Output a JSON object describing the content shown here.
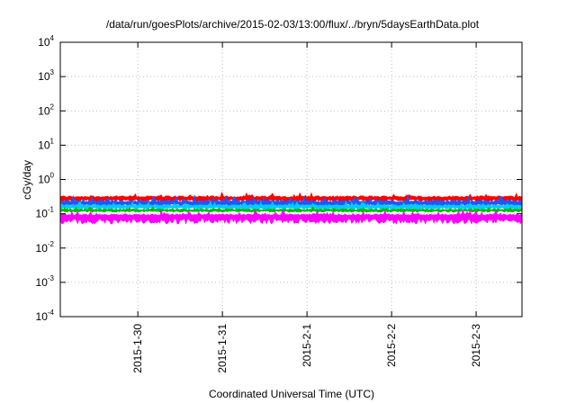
{
  "chart_data": {
    "type": "area",
    "title": "/data/run/goesPlots/archive/2015-02-03/13:00/flux/../bryn/5daysEarthData.plot",
    "xlabel": "Coordinated Universal Time (UTC)",
    "ylabel": "cGy/day",
    "yscale": "log",
    "ylim": [
      0.0001,
      10000
    ],
    "y_ticks": [
      {
        "base": "10",
        "exp": "-4",
        "value": 0.0001
      },
      {
        "base": "10",
        "exp": "-3",
        "value": 0.001
      },
      {
        "base": "10",
        "exp": "-2",
        "value": 0.01
      },
      {
        "base": "10",
        "exp": "-1",
        "value": 0.1
      },
      {
        "base": "10",
        "exp": "0",
        "value": 1
      },
      {
        "base": "10",
        "exp": "1",
        "value": 10
      },
      {
        "base": "10",
        "exp": "2",
        "value": 100
      },
      {
        "base": "10",
        "exp": "3",
        "value": 1000
      },
      {
        "base": "10",
        "exp": "4",
        "value": 10000
      }
    ],
    "xlim": [
      "2015-01-29 02:00",
      "2015-02-03 13:00"
    ],
    "x_ticks": [
      {
        "label": "2015-1-30",
        "value": "2015-01-30"
      },
      {
        "label": "2015-1-31",
        "value": "2015-01-31"
      },
      {
        "label": "2015-2-1",
        "value": "2015-02-01"
      },
      {
        "label": "2015-2-2",
        "value": "2015-02-02"
      },
      {
        "label": "2015-2-3",
        "value": "2015-02-03"
      }
    ],
    "grid": true,
    "series": [
      {
        "color": "#ff0000",
        "typical": 0.3,
        "variation_low": 0.22,
        "variation_high": 0.42
      },
      {
        "color": "#2255ff",
        "typical": 0.22,
        "variation_low": 0.16,
        "variation_high": 0.33
      },
      {
        "color": "#00ccff",
        "typical": 0.17,
        "variation_low": 0.13,
        "variation_high": 0.22
      },
      {
        "color": "#00bb00",
        "typical": 0.13,
        "variation_low": 0.11,
        "variation_high": 0.16
      },
      {
        "color": "#ff00ff",
        "typical": 0.09,
        "variation_low": 0.05,
        "variation_high": 0.12
      }
    ]
  }
}
